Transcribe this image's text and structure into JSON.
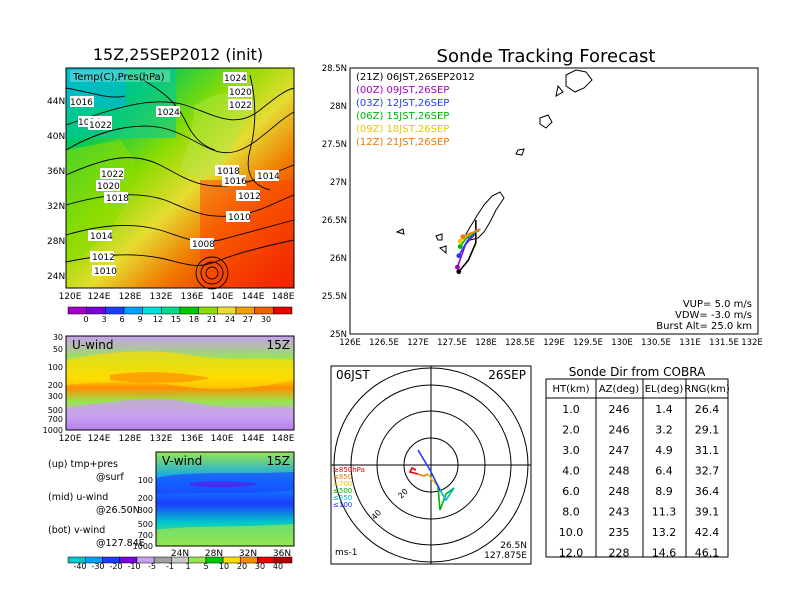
{
  "left_panel": {
    "title": "15Z,25SEP2012 (init)",
    "map_label": "Temp(C),Pres(hPa)",
    "lat_ticks": [
      "44N",
      "40N",
      "36N",
      "32N",
      "28N",
      "24N"
    ],
    "lon_ticks": [
      "120E",
      "124E",
      "128E",
      "132E",
      "136E",
      "140E",
      "144E",
      "148E"
    ],
    "isobar_labels": [
      "1024",
      "1020",
      "1022",
      "1016",
      "1024",
      "1014",
      "1022",
      "1022",
      "1020",
      "1018",
      "1014",
      "1018",
      "1016",
      "1012",
      "1010",
      "1014",
      "1012",
      "1008",
      "1010"
    ],
    "colorbar_ticks": [
      "0",
      "3",
      "6",
      "9",
      "12",
      "15",
      "18",
      "21",
      "24",
      "27",
      "30"
    ],
    "colorbar_colors": [
      "#a000c8",
      "#7800dc",
      "#1e3cff",
      "#00a0ff",
      "#00dcdc",
      "#00dc8c",
      "#00c800",
      "#8cdc00",
      "#e6dc32",
      "#f0a000",
      "#f06000",
      "#e60000"
    ]
  },
  "uwind_panel": {
    "label": "U-wind",
    "time": "15Z",
    "y_ticks": [
      "30",
      "50",
      "100",
      "200",
      "300",
      "500",
      "700",
      "1000"
    ],
    "x_ticks": [
      "120E",
      "124E",
      "128E",
      "132E",
      "136E",
      "140E",
      "144E",
      "148E"
    ]
  },
  "vwind_panel": {
    "label": "V-wind",
    "time": "15Z",
    "y_ticks": [
      "100",
      "200",
      "300",
      "500",
      "700",
      "1000"
    ],
    "x_ticks": [
      "24N",
      "28N",
      "32N",
      "36N"
    ]
  },
  "legend_notes": [
    {
      "line1": "(up) tmp+pres",
      "line2": "@surf"
    },
    {
      "line1": "(mid) u-wind",
      "line2": "@26.50N"
    },
    {
      "line1": "(bot) v-wind",
      "line2": "@127.84E"
    }
  ],
  "wind_colorbar": {
    "ticks": [
      "-40",
      "-30",
      "-20",
      "-10",
      "-5",
      "-1",
      "1",
      "5",
      "10",
      "20",
      "30",
      "40"
    ],
    "colors": [
      "#00c8c8",
      "#00a0ff",
      "#1e3cff",
      "#7800dc",
      "#c8a0f0",
      "#a0a0a0",
      "#c8c8c8",
      "#96e650",
      "#00c800",
      "#ffdc00",
      "#ff8c00",
      "#e60000",
      "#b40000"
    ]
  },
  "track_panel": {
    "title": "Sonde Tracking Forecast",
    "legend": [
      {
        "text": "(21Z) 06JST,26SEP2012",
        "color": "#000000"
      },
      {
        "text": "(00Z) 09JST,26SEP",
        "color": "#a000c8"
      },
      {
        "text": "(03Z) 12JST,26SEP",
        "color": "#1e3cff"
      },
      {
        "text": "(06Z) 15JST,26SEP",
        "color": "#00b400"
      },
      {
        "text": "(09Z) 18JST,26SEP",
        "color": "#e6c800"
      },
      {
        "text": "(12Z) 21JST,26SEP",
        "color": "#f07800"
      }
    ],
    "lat_ticks": [
      "28.5N",
      "28N",
      "27.5N",
      "27N",
      "26.5N",
      "26N",
      "25.5N",
      "25N"
    ],
    "lon_ticks": [
      "126E",
      "126.5E",
      "127E",
      "127.5E",
      "128E",
      "128.5E",
      "129E",
      "129.5E",
      "130E",
      "130.5E",
      "131E",
      "131.5E",
      "132E"
    ],
    "params": [
      "VUP= 5.0 m/s",
      "VDW= -3.0 m/s",
      "Burst Alt= 25.0 km"
    ]
  },
  "hodograph": {
    "time": "06JST",
    "date": "26SEP",
    "levels": [
      {
        "text": "≥850hPa",
        "color": "#e60000"
      },
      {
        "text": "≤850",
        "color": "#f07800"
      },
      {
        "text": "≤700",
        "color": "#e6c800"
      },
      {
        "text": "≤500",
        "color": "#00b400"
      },
      {
        "text": "≤250",
        "color": "#00b4dc"
      },
      {
        "text": "≤100",
        "color": "#1e3cff"
      }
    ],
    "ring_labels": [
      "20",
      "40"
    ],
    "unit": "ms-1",
    "lat": "26.5N",
    "lon": "127.875E"
  },
  "cobra_table": {
    "title": "Sonde Dir from COBRA",
    "headers": [
      "HT(km)",
      "AZ(deg)",
      "EL(deg)",
      "RNG(km)"
    ],
    "rows": [
      [
        "1.0",
        "246",
        "1.4",
        "26.4"
      ],
      [
        "2.0",
        "246",
        "3.2",
        "29.1"
      ],
      [
        "3.0",
        "247",
        "4.9",
        "31.1"
      ],
      [
        "4.0",
        "248",
        "6.4",
        "32.7"
      ],
      [
        "6.0",
        "248",
        "8.9",
        "36.4"
      ],
      [
        "8.0",
        "243",
        "11.3",
        "39.1"
      ],
      [
        "10.0",
        "235",
        "13.2",
        "42.4"
      ],
      [
        "12.0",
        "228",
        "14.6",
        "46.1"
      ]
    ]
  },
  "chart_data": [
    {
      "type": "heatmap",
      "title": "15Z,25SEP2012 (init)",
      "description_label": "Temp(C),Pres(hPa)",
      "x_range": [
        120,
        150
      ],
      "y_range": [
        22,
        46
      ],
      "colorbar": [
        0,
        3,
        6,
        9,
        12,
        15,
        18,
        21,
        24,
        27,
        30
      ],
      "isobars_hPa": [
        1024,
        1020,
        1022,
        1016,
        1014,
        1018,
        1012,
        1010,
        1008
      ]
    },
    {
      "type": "heatmap",
      "title": "U-wind",
      "x_range": [
        120,
        150
      ],
      "y_ticks_hPa": [
        30,
        50,
        100,
        200,
        300,
        500,
        700,
        1000
      ]
    },
    {
      "type": "heatmap",
      "title": "V-wind",
      "x_range": [
        22,
        38
      ],
      "y_ticks_hPa": [
        100,
        200,
        300,
        500,
        700,
        1000
      ],
      "colorbar": [
        -40,
        -30,
        -20,
        -10,
        -5,
        -1,
        1,
        5,
        10,
        20,
        30,
        40
      ]
    },
    {
      "type": "line",
      "title": "Sonde Tracking Forecast",
      "xlim": [
        126,
        132
      ],
      "ylim": [
        25,
        28.5
      ],
      "series": [
        {
          "name": "(21Z) 06JST,26SEP2012",
          "points": [
            [
              127.85,
              26.5
            ],
            [
              127.85,
              26.2
            ],
            [
              127.74,
              25.97
            ],
            [
              127.6,
              25.82
            ]
          ]
        },
        {
          "name": "(00Z) 09JST,26SEP",
          "points": [
            [
              127.86,
              26.4
            ],
            [
              127.82,
              26.3
            ],
            [
              127.7,
              26.18
            ],
            [
              127.58,
              25.88
            ]
          ]
        },
        {
          "name": "(03Z) 12JST,26SEP",
          "points": [
            [
              127.86,
              26.35
            ],
            [
              127.82,
              26.32
            ],
            [
              127.72,
              26.22
            ],
            [
              127.6,
              26.03
            ]
          ]
        },
        {
          "name": "(06Z) 15JST,26SEP",
          "points": [
            [
              127.9,
              26.36
            ],
            [
              127.8,
              26.32
            ],
            [
              127.7,
              26.25
            ],
            [
              127.62,
              26.15
            ]
          ]
        },
        {
          "name": "(09Z) 18JST,26SEP",
          "points": [
            [
              127.9,
              26.38
            ],
            [
              127.8,
              26.33
            ],
            [
              127.72,
              26.29
            ],
            [
              127.62,
              26.22
            ]
          ]
        },
        {
          "name": "(12Z) 21JST,26SEP",
          "points": [
            [
              127.92,
              26.38
            ],
            [
              127.85,
              26.35
            ],
            [
              127.75,
              26.32
            ],
            [
              127.66,
              26.28
            ]
          ]
        }
      ]
    },
    {
      "type": "table",
      "title": "Sonde Dir from COBRA",
      "columns": [
        "HT(km)",
        "AZ(deg)",
        "EL(deg)",
        "RNG(km)"
      ],
      "rows": [
        [
          1.0,
          246,
          1.4,
          26.4
        ],
        [
          2.0,
          246,
          3.2,
          29.1
        ],
        [
          3.0,
          247,
          4.9,
          31.1
        ],
        [
          4.0,
          248,
          6.4,
          32.7
        ],
        [
          6.0,
          248,
          8.9,
          36.4
        ],
        [
          8.0,
          243,
          11.3,
          39.1
        ],
        [
          10.0,
          235,
          13.2,
          42.4
        ],
        [
          12.0,
          228,
          14.6,
          46.1
        ]
      ]
    }
  ]
}
